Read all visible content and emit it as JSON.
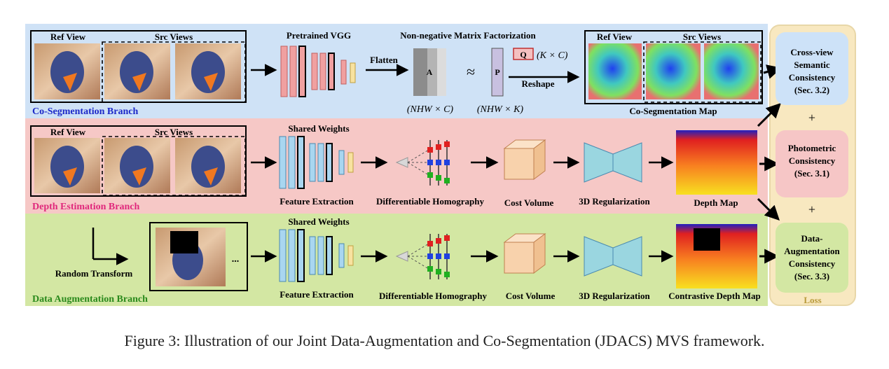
{
  "colors": {
    "coseg_bg": "#cfe2f6",
    "depth_bg": "#f6c8c6",
    "aug_bg": "#d3e7a3",
    "loss_bg": "#f8e8c0",
    "coseg_text": "#1c28c8",
    "depth_text": "#e0287c",
    "aug_text": "#2a8a1c",
    "loss_text": "#b89a3a",
    "feat_blue": "#a9d6f0",
    "feat_red": "#f0a0a0",
    "feat_yellow": "#f8e2a0",
    "cost_volume": "#f8d2ac",
    "regularizer": "#9ad6e0"
  },
  "branches": {
    "coseg": {
      "label": "Co-Segmentation Branch",
      "ref_view": "Ref View",
      "src_views": "Src Views",
      "vgg_label": "Pretrained VGG",
      "nmf_label": "Non-negative Matrix Factorization",
      "flatten": "Flatten",
      "matrix_a": "A",
      "approx": "≈",
      "matrix_p": "P",
      "matrix_q": "Q",
      "q_dim": "(K × C)",
      "reshape": "Reshape",
      "a_dim": "(NHW × C)",
      "p_dim": "(NHW × K)",
      "out_ref_view": "Ref View",
      "out_src_views": "Src Views",
      "out_label": "Co-Segmentation Map"
    },
    "depth": {
      "label": "Depth Estimation Branch",
      "ref_view": "Ref View",
      "src_views": "Src Views",
      "shared_weights": "Shared Weights",
      "feature_extraction": "Feature Extraction",
      "homography": "Differentiable Homography",
      "cost_volume": "Cost Volume",
      "regularization": "3D Regularization",
      "depth_map": "Depth Map"
    },
    "aug": {
      "label": "Data Augmentation Branch",
      "random_transform": "Random Transform",
      "ellipsis": "...",
      "shared_weights": "Shared Weights",
      "feature_extraction": "Feature Extraction",
      "homography": "Differentiable Homography",
      "cost_volume": "Cost Volume",
      "regularization": "3D Regularization",
      "depth_map": "Contrastive Depth Map"
    }
  },
  "loss": {
    "label": "Loss",
    "plus": "+",
    "items": [
      {
        "lines": [
          "Cross-view",
          "Semantic",
          "Consistency",
          "(Sec. 3.2)"
        ],
        "color": "#cde2f8"
      },
      {
        "lines": [
          "Photometric",
          "Consistency",
          "(Sec. 3.1)"
        ],
        "color": "#f6c6c6"
      },
      {
        "lines": [
          "Data-",
          "Augmentation",
          "Consistency",
          "(Sec. 3.3)"
        ],
        "color": "#d3e7a3"
      }
    ]
  },
  "caption": "Figure 3: Illustration of our Joint Data-Augmentation and Co-Segmentation (JDACS) MVS framework."
}
